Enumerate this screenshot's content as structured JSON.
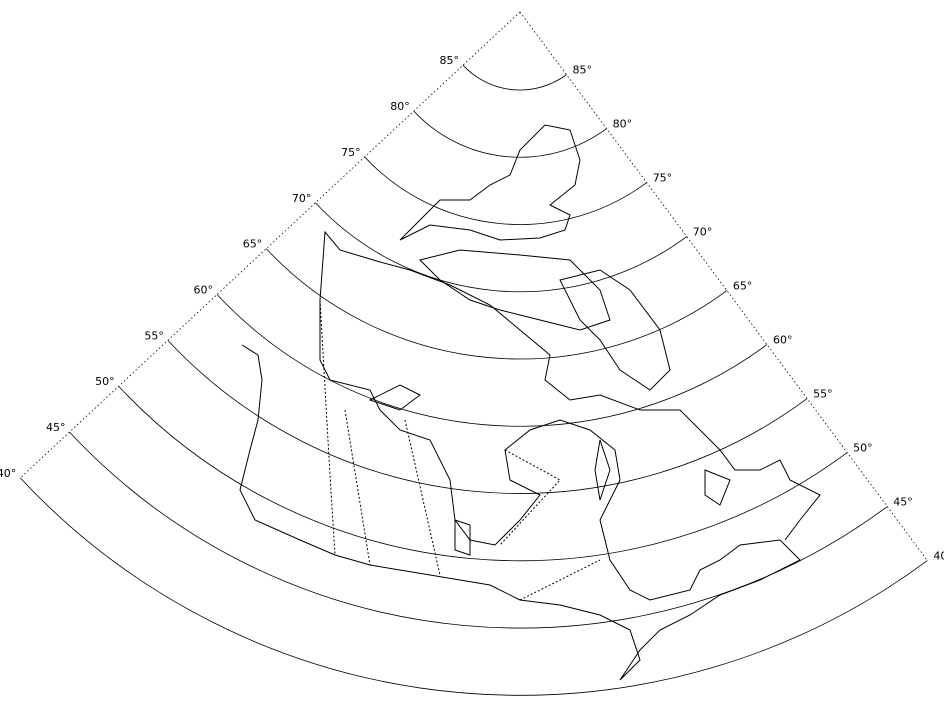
{
  "map": {
    "parallels": [
      {
        "value": 85,
        "label": "85°"
      },
      {
        "value": 80,
        "label": "80°"
      },
      {
        "value": 75,
        "label": "75°"
      },
      {
        "value": 70,
        "label": "70°"
      },
      {
        "value": 65,
        "label": "65°"
      },
      {
        "value": 60,
        "label": "60°"
      },
      {
        "value": 55,
        "label": "55°"
      },
      {
        "value": 50,
        "label": "50°"
      },
      {
        "value": 45,
        "label": "45°"
      },
      {
        "value": 40,
        "label": "40°"
      }
    ]
  }
}
